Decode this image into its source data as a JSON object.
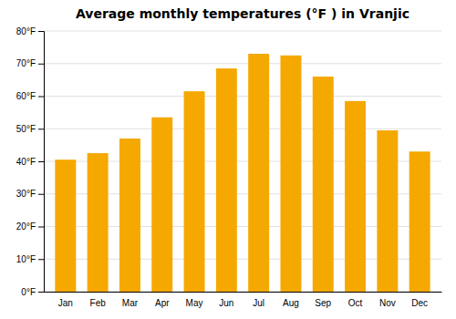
{
  "chart_data": {
    "type": "bar",
    "title": "Average monthly temperatures (°F ) in Vranjic",
    "categories": [
      "Jan",
      "Feb",
      "Mar",
      "Apr",
      "May",
      "Jun",
      "Jul",
      "Aug",
      "Sep",
      "Oct",
      "Nov",
      "Dec"
    ],
    "values": [
      40.5,
      42.5,
      47,
      53.5,
      61.5,
      68.5,
      73,
      72.5,
      66,
      58.5,
      49.5,
      43
    ],
    "color": "#F5A800",
    "ylim": [
      0,
      80
    ],
    "yticks": [
      {
        "value": 0,
        "label": "0°F"
      },
      {
        "value": 10,
        "label": "10°F"
      },
      {
        "value": 20,
        "label": "20°F"
      },
      {
        "value": 30,
        "label": "30°F"
      },
      {
        "value": 40,
        "label": "40°F"
      },
      {
        "value": 50,
        "label": "50°F"
      },
      {
        "value": 60,
        "label": "60°F"
      },
      {
        "value": 70,
        "label": "70°F"
      },
      {
        "value": 80,
        "label": "80°F"
      }
    ],
    "grid": true
  }
}
